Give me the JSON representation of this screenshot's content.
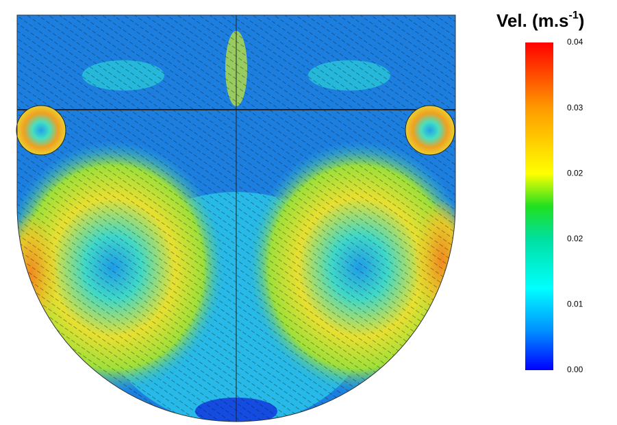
{
  "legend": {
    "title": "Vel. (m.s",
    "superscript": "-1",
    "title_end": ")",
    "ticks": [
      "0.04",
      "0.03",
      "0.02",
      "0.02",
      "0.01",
      "0.00"
    ]
  }
}
